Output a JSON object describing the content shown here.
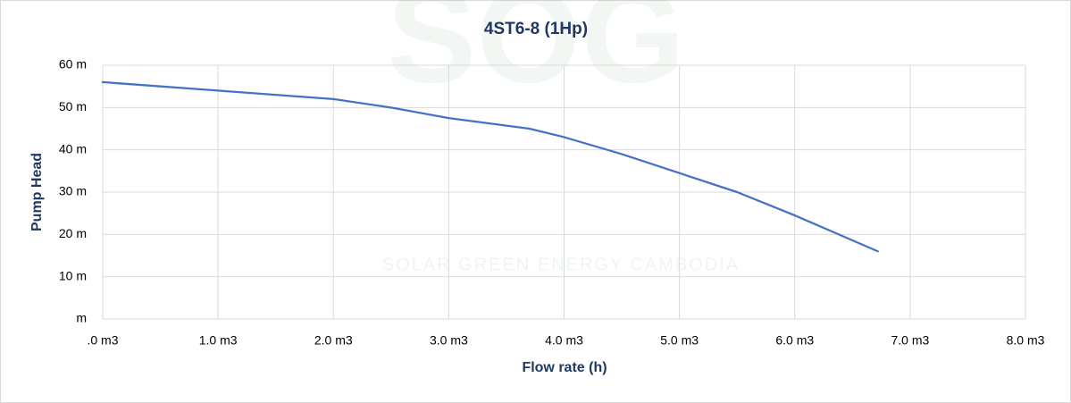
{
  "chart_data": {
    "type": "line",
    "title": "4ST6-8 (1Hp)",
    "x_label": "Flow rate (h)",
    "y_label": "Pump Head",
    "watermark_logo": "SOG",
    "watermark": "SOLAR GREEN ENERGY CAMBODIA",
    "x": [
      0,
      1.0,
      2.0,
      2.5,
      3.0,
      3.7,
      4.0,
      4.5,
      5.0,
      5.5,
      6.0,
      6.72
    ],
    "series": [
      {
        "name": "Pump Head",
        "color": "#4472c4",
        "values": [
          56,
          54,
          52,
          50,
          47.5,
          45,
          43,
          39,
          34.5,
          30,
          24.5,
          16
        ]
      }
    ],
    "xlim": [
      0,
      8
    ],
    "xticks": [
      {
        "value": 0,
        "label": ".0 m3"
      },
      {
        "value": 1,
        "label": "1.0 m3"
      },
      {
        "value": 2,
        "label": "2.0 m3"
      },
      {
        "value": 3,
        "label": "3.0 m3"
      },
      {
        "value": 4,
        "label": "4.0 m3"
      },
      {
        "value": 5,
        "label": "5.0 m3"
      },
      {
        "value": 6,
        "label": "6.0 m3"
      },
      {
        "value": 7,
        "label": "7.0 m3"
      },
      {
        "value": 8,
        "label": "8.0 m3"
      }
    ],
    "ylim": [
      0,
      60
    ],
    "yticks": [
      {
        "value": 0,
        "label": "m"
      },
      {
        "value": 10,
        "label": "10 m"
      },
      {
        "value": 20,
        "label": "20 m"
      },
      {
        "value": 30,
        "label": "30 m"
      },
      {
        "value": 40,
        "label": "40 m"
      },
      {
        "value": 50,
        "label": "50 m"
      },
      {
        "value": 60,
        "label": "60 m"
      }
    ],
    "grid": true
  }
}
